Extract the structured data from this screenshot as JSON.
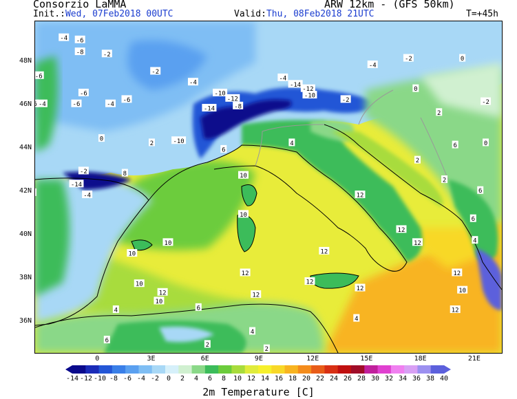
{
  "header": {
    "org": "Consorzio LaMMA",
    "model": "ARW 12km - (GFS 50km)",
    "init_label": "Init.:",
    "init_value": "Wed, 07Feb2018 00UTC",
    "valid_label": "Valid:",
    "valid_value": "Thu, 08Feb2018 21UTC",
    "lead": "T=+45h"
  },
  "map": {
    "lat_labels": [
      "48N",
      "46N",
      "44N",
      "42N",
      "40N",
      "38N",
      "36N"
    ],
    "lon_labels": [
      "0",
      "3E",
      "6E",
      "9E",
      "12E",
      "15E",
      "18E",
      "21E"
    ],
    "temp_labels": [
      {
        "t": "-4",
        "lon": -1.9,
        "lat": 49.15
      },
      {
        "t": "-6",
        "lon": -1.0,
        "lat": 49.05
      },
      {
        "t": "-8",
        "lon": -1.0,
        "lat": 48.5
      },
      {
        "t": "-2",
        "lon": 0.5,
        "lat": 48.4
      },
      {
        "t": "-2",
        "lon": -4.5,
        "lat": 48.2
      },
      {
        "t": "-2",
        "lon": 3.2,
        "lat": 47.6
      },
      {
        "t": "-6",
        "lon": -3.3,
        "lat": 47.4
      },
      {
        "t": "-4",
        "lon": 5.3,
        "lat": 47.1
      },
      {
        "t": "-6",
        "lon": -0.8,
        "lat": 46.6
      },
      {
        "t": "-6",
        "lon": -3.6,
        "lat": 46.1
      },
      {
        "t": "-4",
        "lon": -3.1,
        "lat": 46.1
      },
      {
        "t": "-6",
        "lon": -1.2,
        "lat": 46.1
      },
      {
        "t": "-4",
        "lon": 0.7,
        "lat": 46.1
      },
      {
        "t": "-2",
        "lon": -5.0,
        "lat": 46.3
      },
      {
        "t": "-6",
        "lon": 1.6,
        "lat": 46.3
      },
      {
        "t": "-10",
        "lon": 6.8,
        "lat": 46.6
      },
      {
        "t": "-12",
        "lon": 7.5,
        "lat": 46.35
      },
      {
        "t": "-8",
        "lon": 7.8,
        "lat": 46.0
      },
      {
        "t": "-14",
        "lon": 6.2,
        "lat": 45.9
      },
      {
        "t": "-4",
        "lon": 10.3,
        "lat": 47.3
      },
      {
        "t": "-14",
        "lon": 11.0,
        "lat": 47.0
      },
      {
        "t": "-12",
        "lon": 11.7,
        "lat": 46.8
      },
      {
        "t": "-10",
        "lon": 11.8,
        "lat": 46.5
      },
      {
        "t": "-2",
        "lon": 13.8,
        "lat": 46.3
      },
      {
        "t": "-4",
        "lon": 15.3,
        "lat": 47.9
      },
      {
        "t": "-2",
        "lon": 17.3,
        "lat": 48.2
      },
      {
        "t": "0",
        "lon": 20.3,
        "lat": 48.2
      },
      {
        "t": "2",
        "lon": 3.0,
        "lat": 44.3
      },
      {
        "t": "-10",
        "lon": 4.5,
        "lat": 44.4
      },
      {
        "t": "6",
        "lon": 7.0,
        "lat": 44.0
      },
      {
        "t": "4",
        "lon": 10.8,
        "lat": 44.3
      },
      {
        "t": "0",
        "lon": 0.2,
        "lat": 44.5
      },
      {
        "t": "-2",
        "lon": -0.8,
        "lat": 43.0
      },
      {
        "t": "-12",
        "lon": -3.9,
        "lat": 42.8
      },
      {
        "t": "-14",
        "lon": -1.2,
        "lat": 42.4
      },
      {
        "t": "-4",
        "lon": -0.6,
        "lat": 41.9
      },
      {
        "t": "8",
        "lon": 1.5,
        "lat": 42.9
      },
      {
        "t": "10",
        "lon": 8.1,
        "lat": 42.8
      },
      {
        "t": "10",
        "lon": 8.1,
        "lat": 41.0
      },
      {
        "t": "10",
        "lon": 3.9,
        "lat": 39.7
      },
      {
        "t": "10",
        "lon": 1.9,
        "lat": 39.2
      },
      {
        "t": "12",
        "lon": 12.6,
        "lat": 39.3
      },
      {
        "t": "12",
        "lon": 8.2,
        "lat": 38.3
      },
      {
        "t": "10",
        "lon": 2.3,
        "lat": 37.8
      },
      {
        "t": "12",
        "lon": 3.6,
        "lat": 37.4
      },
      {
        "t": "12",
        "lon": 8.8,
        "lat": 37.3
      },
      {
        "t": "10",
        "lon": 3.4,
        "lat": 37.0
      },
      {
        "t": "12",
        "lon": 11.8,
        "lat": 37.9
      },
      {
        "t": "12",
        "lon": 14.6,
        "lat": 41.9
      },
      {
        "t": "12",
        "lon": 16.9,
        "lat": 40.3
      },
      {
        "t": "12",
        "lon": 17.8,
        "lat": 39.7
      },
      {
        "t": "12",
        "lon": 14.6,
        "lat": 37.6
      },
      {
        "t": "12",
        "lon": 20.0,
        "lat": 38.3
      },
      {
        "t": "10",
        "lon": 20.3,
        "lat": 37.5
      },
      {
        "t": "12",
        "lon": 19.9,
        "lat": 36.6
      },
      {
        "t": "4",
        "lon": 1.0,
        "lat": 36.6
      },
      {
        "t": "6",
        "lon": 0.5,
        "lat": 35.2
      },
      {
        "t": "2",
        "lon": 6.1,
        "lat": 35.0
      },
      {
        "t": "4",
        "lon": 8.6,
        "lat": 35.6
      },
      {
        "t": "6",
        "lon": 5.6,
        "lat": 36.7
      },
      {
        "t": "-2",
        "lon": -5.0,
        "lat": 41.4
      },
      {
        "t": "0",
        "lon": -3.6,
        "lat": 42.0
      },
      {
        "t": "-4",
        "lon": -4.7,
        "lat": 40.2
      },
      {
        "t": "0",
        "lon": -4.5,
        "lat": 39.0
      },
      {
        "t": "6",
        "lon": -4.3,
        "lat": 37.9
      },
      {
        "t": "6",
        "lon": 19.9,
        "lat": 44.2
      },
      {
        "t": "2",
        "lon": 17.8,
        "lat": 43.5
      },
      {
        "t": "2",
        "lon": 19.3,
        "lat": 42.6
      },
      {
        "t": "6",
        "lon": 20.9,
        "lat": 40.8
      },
      {
        "t": "4",
        "lon": 21.0,
        "lat": 39.8
      },
      {
        "t": "0",
        "lon": 17.7,
        "lat": 46.8
      },
      {
        "t": "2",
        "lon": 19.0,
        "lat": 45.7
      },
      {
        "t": "-2",
        "lon": 21.6,
        "lat": 46.2
      },
      {
        "t": "0",
        "lon": 21.6,
        "lat": 44.3
      },
      {
        "t": "6",
        "lon": 21.3,
        "lat": 42.1
      },
      {
        "t": "4",
        "lon": 14.4,
        "lat": 36.2
      },
      {
        "t": "2",
        "lon": 9.4,
        "lat": 34.8
      },
      {
        "t": "6",
        "lon": -4.5,
        "lat": 35.1
      }
    ]
  },
  "colorbar": {
    "labels": [
      "-14",
      "-12",
      "-10",
      "-8",
      "-6",
      "-4",
      "-2",
      "0",
      "2",
      "4",
      "6",
      "8",
      "10",
      "12",
      "14",
      "16",
      "18",
      "20",
      "22",
      "24",
      "26",
      "28",
      "30",
      "32",
      "34",
      "36",
      "38",
      "40"
    ],
    "colors": [
      "#0a0a8c",
      "#1a2bb8",
      "#2456d6",
      "#3a7fe8",
      "#5aa0f0",
      "#7fbef4",
      "#a8d8f6",
      "#d6f0fa",
      "#d0f0d0",
      "#8ad888",
      "#3cbc5a",
      "#6ccc3c",
      "#a8dc3c",
      "#e0ec3c",
      "#f6f02c",
      "#f8d828",
      "#f8b420",
      "#f48c1c",
      "#e85c18",
      "#d83014",
      "#c01010",
      "#a00c28",
      "#c0209c",
      "#e040d0",
      "#f080f0",
      "#d8a0f4",
      "#9c90f0",
      "#5c60dc"
    ],
    "title": "2m Temperature [C]"
  }
}
